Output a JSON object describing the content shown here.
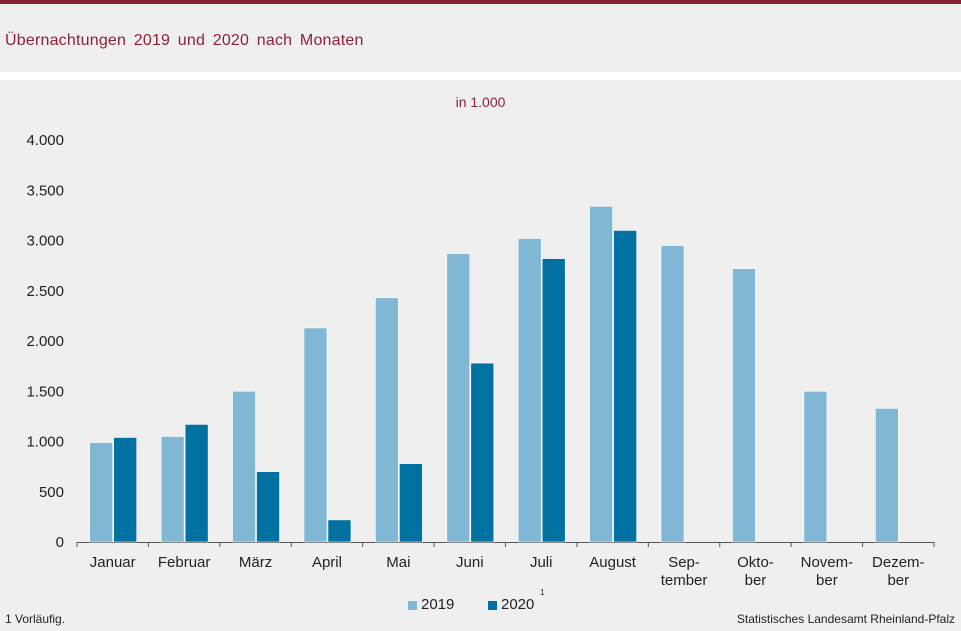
{
  "header": {
    "title": "Übernachtungen  2019 und 2020 nach Monaten"
  },
  "footnote": "1 Vorläufig.",
  "source": "Statistisches Landesamt Rheinland-Pfalz",
  "legend": {
    "series1_label": "2019",
    "series2_label": "2020",
    "series2_sup": "1"
  },
  "colors": {
    "accent": "#8b2238",
    "series_2019": "#7fb7d4",
    "series_2020": "#0071a0"
  },
  "chart_data": {
    "type": "bar",
    "subtitle": "in 1.000",
    "categories": [
      [
        "Januar"
      ],
      [
        "Februar"
      ],
      [
        "März"
      ],
      [
        "April"
      ],
      [
        "Mai"
      ],
      [
        "Juni"
      ],
      [
        "Juli"
      ],
      [
        "August"
      ],
      [
        "Sep-",
        "tember"
      ],
      [
        "Okto-",
        "ber"
      ],
      [
        "Novem-",
        "ber"
      ],
      [
        "Dezem-",
        "ber"
      ]
    ],
    "series": [
      {
        "name": "2019",
        "values": [
          990,
          1050,
          1500,
          2130,
          2430,
          2870,
          3020,
          3340,
          2950,
          2720,
          1500,
          1330
        ]
      },
      {
        "name": "2020",
        "values": [
          1040,
          1170,
          700,
          220,
          780,
          1780,
          2820,
          3100,
          null,
          null,
          null,
          null
        ]
      }
    ],
    "ylim": [
      0,
      4000
    ],
    "yticks": [
      0,
      500,
      1000,
      1500,
      2000,
      2500,
      3000,
      3500,
      4000
    ],
    "ytick_labels": [
      "0",
      "500",
      "1.000",
      "1.500",
      "2.000",
      "2.500",
      "3.000",
      "3.500",
      "4.000"
    ],
    "grid": false,
    "legend_position": "bottom"
  }
}
